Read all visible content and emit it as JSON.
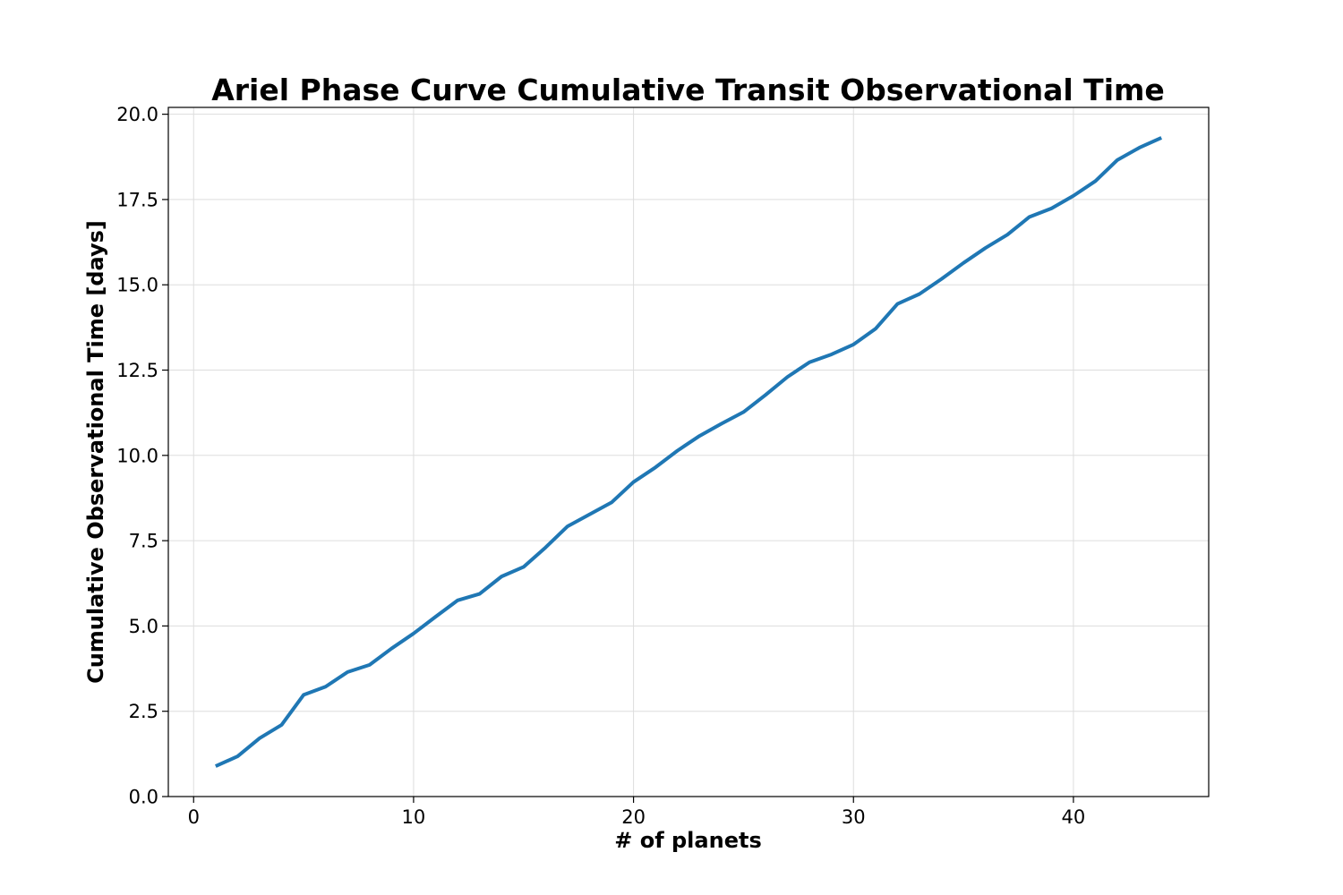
{
  "chart_data": {
    "type": "line",
    "title": "Ariel Phase Curve Cumulative Transit Observational Time",
    "xlabel": "# of planets",
    "ylabel": "Cumulative Observational Time [days]",
    "xlim": [
      -1.15,
      46.15
    ],
    "ylim": [
      0,
      20.2
    ],
    "xticks": [
      0,
      10,
      20,
      30,
      40
    ],
    "xtick_labels": [
      "0",
      "10",
      "20",
      "30",
      "40"
    ],
    "yticks": [
      0,
      2.5,
      5,
      7.5,
      10,
      12.5,
      15,
      17.5,
      20
    ],
    "ytick_labels": [
      "0.0",
      "2.5",
      "5.0",
      "7.5",
      "10.0",
      "12.5",
      "15.0",
      "17.5",
      "20.0"
    ],
    "grid": true,
    "series": [
      {
        "color": "#1f77b4",
        "x": [
          1,
          2,
          3,
          4,
          5,
          6,
          7,
          8,
          9,
          10,
          11,
          12,
          13,
          14,
          15,
          16,
          17,
          18,
          19,
          20,
          21,
          22,
          23,
          24,
          25,
          26,
          27,
          28,
          29,
          30,
          31,
          32,
          33,
          34,
          35,
          36,
          37,
          38,
          39,
          40,
          41,
          42,
          43,
          44
        ],
        "y": [
          0.89,
          1.18,
          1.71,
          2.1,
          2.98,
          3.22,
          3.65,
          3.86,
          4.34,
          4.78,
          5.27,
          5.75,
          5.94,
          6.45,
          6.73,
          7.3,
          7.92,
          8.27,
          8.62,
          9.22,
          9.65,
          10.14,
          10.57,
          10.93,
          11.27,
          11.77,
          12.3,
          12.73,
          12.96,
          13.25,
          13.71,
          14.44,
          14.73,
          15.17,
          15.64,
          16.08,
          16.47,
          16.99,
          17.24,
          17.61,
          18.04,
          18.66,
          19.02,
          19.31
        ]
      }
    ]
  }
}
